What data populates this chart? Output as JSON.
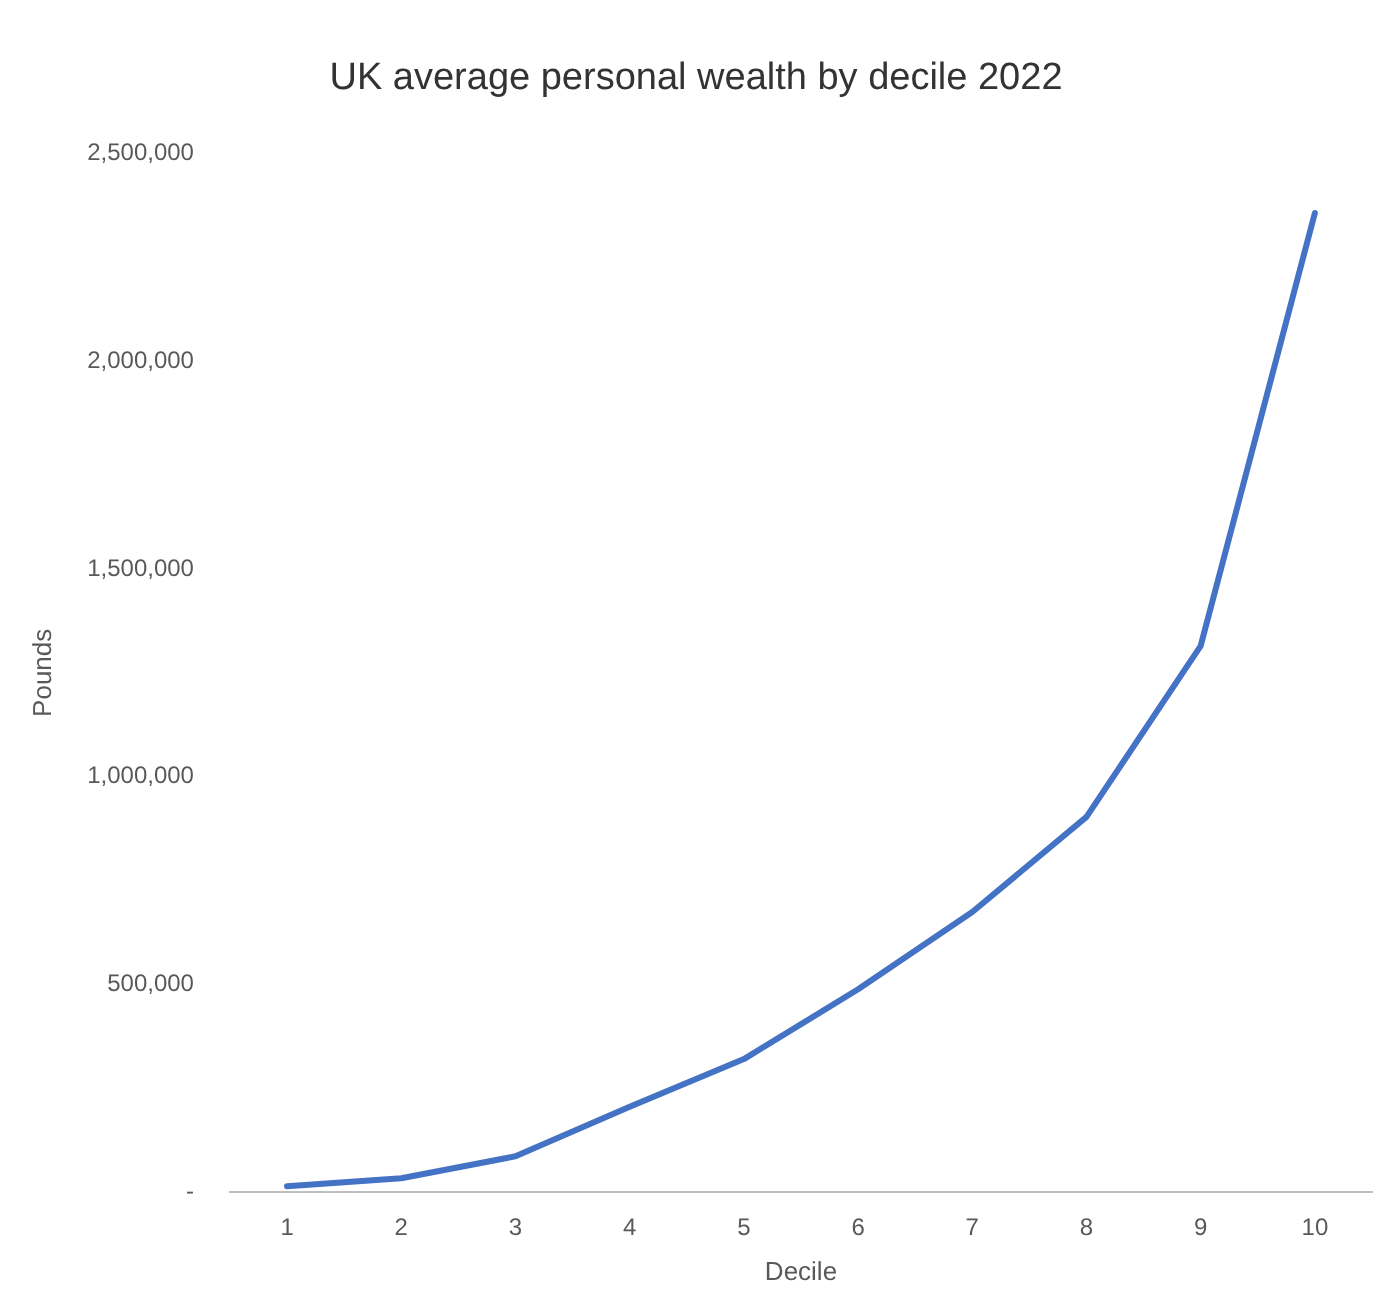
{
  "chart_data": {
    "type": "line",
    "title": "UK average personal wealth by decile 2022",
    "xlabel": "Decile",
    "ylabel": "Pounds",
    "categories": [
      "1",
      "2",
      "3",
      "4",
      "5",
      "6",
      "7",
      "8",
      "9",
      "10"
    ],
    "series": [
      {
        "color": "#4472c4",
        "values": [
          14000,
          33000,
          86000,
          205000,
          320000,
          488000,
          674000,
          903000,
          1315000,
          2357000
        ]
      }
    ],
    "ylim": [
      0,
      2500000
    ],
    "yticks": [
      {
        "value": 0,
        "label": "-"
      },
      {
        "value": 500000,
        "label": "500,000"
      },
      {
        "value": 1000000,
        "label": "1,000,000"
      },
      {
        "value": 1500000,
        "label": "1,500,000"
      },
      {
        "value": 2000000,
        "label": "2,000,000"
      },
      {
        "value": 2500000,
        "label": "2,500,000"
      }
    ],
    "grid": false,
    "legend": false,
    "marker": "none",
    "line_style": "solid"
  }
}
